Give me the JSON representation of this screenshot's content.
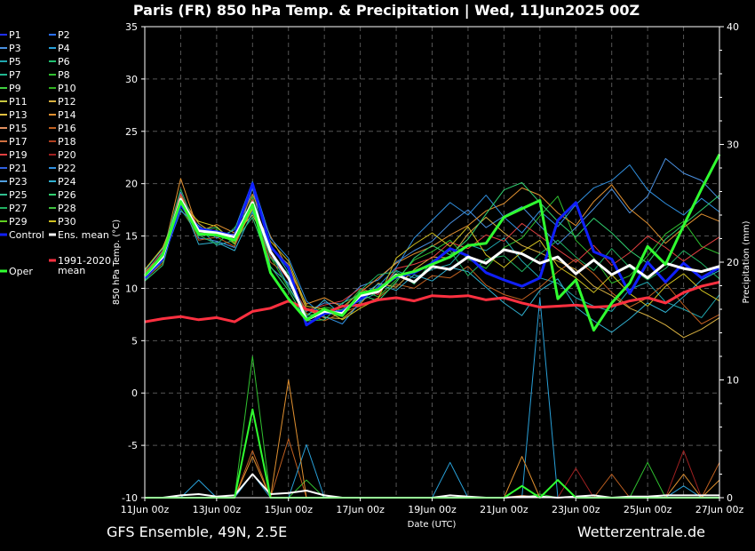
{
  "chart_data": {
    "type": "line",
    "title": "Paris  (FR)  850 hPa Temp. & Precipitation | Wed, 11Jun2025 00Z",
    "xlabel": "Date (UTC)",
    "ylabel_left": "850 hPa Temp. (°C)",
    "ylabel_right": "Precipitation (mm)",
    "ylim_left": [
      -10,
      35
    ],
    "ylim_right": [
      0,
      40
    ],
    "y_ticks_left": [
      "35",
      "30",
      "25",
      "20",
      "15",
      "10",
      "5",
      "0",
      "-5",
      "-10"
    ],
    "y_ticks_right": [
      "40",
      "30",
      "20",
      "10",
      "0"
    ],
    "x_ticks": [
      "11Jun 00z",
      "13Jun 00z",
      "15Jun 00z",
      "17Jun 00z",
      "19Jun 00z",
      "21Jun 00z",
      "23Jun 00z",
      "25Jun 00z",
      "27Jun 00z"
    ],
    "x_hours_range": [
      0,
      384
    ],
    "grid": true,
    "legend_position": "left",
    "source_left": "GFS Ensemble, 49N, 2.5E",
    "source_right": "Wetterzentrale.de",
    "legend": [
      {
        "label": "P1",
        "color": "#2030ff"
      },
      {
        "label": "P2",
        "color": "#2a70ff"
      },
      {
        "label": "P3",
        "color": "#4a90e0"
      },
      {
        "label": "P4",
        "color": "#28a0d8"
      },
      {
        "label": "P5",
        "color": "#20a8b0"
      },
      {
        "label": "P6",
        "color": "#20c070"
      },
      {
        "label": "P7",
        "color": "#20b890"
      },
      {
        "label": "P8",
        "color": "#30c030"
      },
      {
        "label": "P9",
        "color": "#40d040"
      },
      {
        "label": "P10",
        "color": "#30b020"
      },
      {
        "label": "P11",
        "color": "#c8c840"
      },
      {
        "label": "P12",
        "color": "#d8b040"
      },
      {
        "label": "P13",
        "color": "#e0c040"
      },
      {
        "label": "P14",
        "color": "#e09030"
      },
      {
        "label": "P15",
        "color": "#e09060"
      },
      {
        "label": "P16",
        "color": "#c06020"
      },
      {
        "label": "P17",
        "color": "#d07040"
      },
      {
        "label": "P18",
        "color": "#b04020"
      },
      {
        "label": "P19",
        "color": "#e04040"
      },
      {
        "label": "P20",
        "color": "#a02020"
      },
      {
        "label": "P21",
        "color": "#3060e0"
      },
      {
        "label": "P22",
        "color": "#3090e0"
      },
      {
        "label": "P23",
        "color": "#50a0e0"
      },
      {
        "label": "P24",
        "color": "#30b0d0"
      },
      {
        "label": "P25",
        "color": "#30c090"
      },
      {
        "label": "P26",
        "color": "#30d070"
      },
      {
        "label": "P27",
        "color": "#20b060"
      },
      {
        "label": "P28",
        "color": "#40c040"
      },
      {
        "label": "P29",
        "color": "#60d020"
      },
      {
        "label": "P30",
        "color": "#d0c020"
      },
      {
        "label": "Control",
        "color": "#1020ff"
      },
      {
        "label": "Ens. mean",
        "color": "#ffffff"
      },
      {
        "label": "1991-2020 mean",
        "color": "#ff3040"
      },
      {
        "label": "Oper",
        "color": "#30ff30"
      }
    ],
    "x_hours": [
      0,
      12,
      24,
      36,
      48,
      60,
      72,
      84,
      96,
      108,
      120,
      132,
      144,
      156,
      168,
      180,
      192,
      204,
      216,
      228,
      240,
      252,
      264,
      276,
      288,
      300,
      312,
      324,
      336,
      348,
      360,
      372,
      384
    ],
    "series": [
      {
        "name": "Ens. mean",
        "axis": "left",
        "values": [
          11.2,
          13.0,
          18.5,
          15.5,
          15.3,
          14.9,
          18.2,
          13.5,
          11.0,
          7.0,
          7.8,
          7.6,
          9.3,
          9.7,
          11.3,
          10.6,
          12.1,
          11.8,
          13.0,
          12.4,
          13.7,
          13.3,
          12.4,
          13.0,
          11.4,
          12.7,
          11.3,
          12.2,
          11.0,
          12.4,
          11.9,
          11.6,
          12.1
        ]
      },
      {
        "name": "Oper",
        "axis": "left",
        "values": [
          11.2,
          13.2,
          18.3,
          15.2,
          15.1,
          14.6,
          18.0,
          11.5,
          9.0,
          7.0,
          8.0,
          7.4,
          9.5,
          9.9,
          11.2,
          11.6,
          12.3,
          13.0,
          14.1,
          14.3,
          16.8,
          17.6,
          18.4,
          9.0,
          10.8,
          6.0,
          8.6,
          10.5,
          14.0,
          12.3,
          16.0,
          19.5,
          22.8
        ]
      },
      {
        "name": "Control",
        "axis": "left",
        "values": [
          11.0,
          12.8,
          18.0,
          15.7,
          15.4,
          15.0,
          20.0,
          14.0,
          12.0,
          6.5,
          7.6,
          7.8,
          9.0,
          10.0,
          11.1,
          11.5,
          12.4,
          13.8,
          13.1,
          11.5,
          10.8,
          10.2,
          11.0,
          16.5,
          18.2,
          13.5,
          12.8,
          9.5,
          12.5,
          10.6,
          12.4,
          11.0,
          12.0
        ]
      },
      {
        "name": "1991-2020 mean",
        "axis": "left",
        "values": [
          6.8,
          7.1,
          7.3,
          7.0,
          7.2,
          6.8,
          7.8,
          8.1,
          8.8,
          8.0,
          7.6,
          8.3,
          8.4,
          8.9,
          9.1,
          8.8,
          9.3,
          9.2,
          9.3,
          8.9,
          9.1,
          8.6,
          8.2,
          8.3,
          8.4,
          8.2,
          8.3,
          8.8,
          9.1,
          8.6,
          9.6,
          10.2,
          10.6
        ]
      },
      {
        "name": "P3",
        "axis": "left",
        "values": [
          11.5,
          13.5,
          19.2,
          14.8,
          14.5,
          13.9,
          19.6,
          12.0,
          10.5,
          7.8,
          8.6,
          8.5,
          10.2,
          10.8,
          12.5,
          13.6,
          14.5,
          16.2,
          17.5,
          15.8,
          16.9,
          17.8,
          16.0,
          14.2,
          15.8,
          17.6,
          19.5,
          17.2,
          18.8,
          22.4,
          21.0,
          20.3,
          18.5
        ]
      },
      {
        "name": "P5",
        "axis": "left",
        "values": [
          10.8,
          12.6,
          17.9,
          15.9,
          14.1,
          14.6,
          17.5,
          14.2,
          11.5,
          7.2,
          7.5,
          8.0,
          8.8,
          9.6,
          11.7,
          11.0,
          11.8,
          12.3,
          14.2,
          13.6,
          14.8,
          12.6,
          11.0,
          10.5,
          9.1,
          8.3,
          7.8,
          9.9,
          10.6,
          8.7,
          8.0,
          7.2,
          9.4
        ]
      },
      {
        "name": "P8",
        "axis": "left",
        "values": [
          11.0,
          13.4,
          17.6,
          15.0,
          15.6,
          14.2,
          18.8,
          13.0,
          10.0,
          7.5,
          8.2,
          7.9,
          9.9,
          9.2,
          10.8,
          12.7,
          13.5,
          14.6,
          12.8,
          11.9,
          13.9,
          14.8,
          16.9,
          18.8,
          14.6,
          12.9,
          10.5,
          11.2,
          13.1,
          15.2,
          16.4,
          14.0,
          13.3
        ]
      },
      {
        "name": "P12",
        "axis": "left",
        "values": [
          11.3,
          12.9,
          18.8,
          16.2,
          15.0,
          15.2,
          17.0,
          13.8,
          12.3,
          8.0,
          7.2,
          7.1,
          8.5,
          10.5,
          10.1,
          11.8,
          13.0,
          12.9,
          15.2,
          16.8,
          15.3,
          14.1,
          13.4,
          12.6,
          11.8,
          10.2,
          9.3,
          8.1,
          7.4,
          6.5,
          5.3,
          6.1,
          7.2
        ]
      },
      {
        "name": "P14",
        "axis": "left",
        "values": [
          11.6,
          13.1,
          20.5,
          15.4,
          16.1,
          15.3,
          19.0,
          15.0,
          11.8,
          8.5,
          9.1,
          8.2,
          9.6,
          11.0,
          12.4,
          13.3,
          14.0,
          15.1,
          16.0,
          17.4,
          18.1,
          19.6,
          18.9,
          17.2,
          16.0,
          18.3,
          19.9,
          17.6,
          16.2,
          14.3,
          15.8,
          17.1,
          16.4
        ]
      },
      {
        "name": "P16",
        "axis": "left",
        "values": [
          10.9,
          12.4,
          18.1,
          14.6,
          14.9,
          14.0,
          17.8,
          12.5,
          11.2,
          7.6,
          6.9,
          7.7,
          8.3,
          9.1,
          10.4,
          10.0,
          11.2,
          11.0,
          12.1,
          10.3,
          9.4,
          8.9,
          10.1,
          11.6,
          12.8,
          11.4,
          9.6,
          8.2,
          9.1,
          10.5,
          8.4,
          6.6,
          7.5
        ]
      },
      {
        "name": "P19",
        "axis": "left",
        "values": [
          11.4,
          13.6,
          19.0,
          15.8,
          15.5,
          14.8,
          18.5,
          13.1,
          10.8,
          7.9,
          8.4,
          8.8,
          10.0,
          9.4,
          11.9,
          12.3,
          12.9,
          14.4,
          13.8,
          15.1,
          14.5,
          16.2,
          15.0,
          13.7,
          12.5,
          14.1,
          12.2,
          13.4,
          15.0,
          13.9,
          12.6,
          13.8,
          14.9
        ]
      },
      {
        "name": "P22",
        "axis": "left",
        "values": [
          11.1,
          12.7,
          17.4,
          16.0,
          14.8,
          15.6,
          20.2,
          14.8,
          12.9,
          8.8,
          7.3,
          6.6,
          8.7,
          10.2,
          12.0,
          14.8,
          16.5,
          18.2,
          17.0,
          18.9,
          16.8,
          15.3,
          17.4,
          15.9,
          18.0,
          19.6,
          20.3,
          21.8,
          19.4,
          18.1,
          17.0,
          18.6,
          17.3
        ]
      },
      {
        "name": "P24",
        "axis": "left",
        "values": [
          11.7,
          13.8,
          18.6,
          14.2,
          14.4,
          13.6,
          17.3,
          13.4,
          10.2,
          7.3,
          8.9,
          7.4,
          9.2,
          10.4,
          9.8,
          11.3,
          10.7,
          12.0,
          11.6,
          10.1,
          8.6,
          7.4,
          9.8,
          10.9,
          8.2,
          6.9,
          5.8,
          7.1,
          8.6,
          7.7,
          9.2,
          10.8,
          11.7
        ]
      },
      {
        "name": "P26",
        "axis": "left",
        "values": [
          10.7,
          12.2,
          18.2,
          15.6,
          15.8,
          14.5,
          16.8,
          12.1,
          9.8,
          6.9,
          7.0,
          8.6,
          9.4,
          8.8,
          10.6,
          12.9,
          14.1,
          13.2,
          14.7,
          17.1,
          19.4,
          20.1,
          18.2,
          16.4,
          14.9,
          16.7,
          15.3,
          13.6,
          12.4,
          14.7,
          16.1,
          17.5,
          18.9
        ]
      },
      {
        "name": "P27",
        "axis": "left",
        "values": [
          11.2,
          13.3,
          19.5,
          15.1,
          14.2,
          15.8,
          18.1,
          12.9,
          11.4,
          7.4,
          7.7,
          7.3,
          9.8,
          11.3,
          11.6,
          10.4,
          12.6,
          13.6,
          11.2,
          12.8,
          13.1,
          11.6,
          13.3,
          14.6,
          13.0,
          11.7,
          13.8,
          12.0,
          10.8,
          11.9,
          13.6,
          12.4,
          10.9
        ]
      },
      {
        "name": "P30",
        "axis": "left",
        "values": [
          11.8,
          13.9,
          18.0,
          16.4,
          15.9,
          14.3,
          17.6,
          14.5,
          12.6,
          8.3,
          8.0,
          7.0,
          8.1,
          9.0,
          12.9,
          14.2,
          15.3,
          14.0,
          15.9,
          13.2,
          12.0,
          13.5,
          14.6,
          12.1,
          11.0,
          9.6,
          11.3,
          9.5,
          8.3,
          10.2,
          11.4,
          9.8,
          8.8
        ]
      },
      {
        "name": "Precip mean",
        "axis": "right",
        "values": [
          0,
          0,
          0.2,
          0.3,
          0.1,
          0.2,
          2.0,
          0.3,
          0.4,
          0.6,
          0.2,
          0,
          0,
          0,
          0,
          0,
          0,
          0.2,
          0.1,
          0,
          0,
          0.1,
          0.1,
          0,
          0.1,
          0.2,
          0,
          0.1,
          0.1,
          0.2,
          0.2,
          0.2,
          0.2
        ]
      },
      {
        "name": "Precip oper",
        "axis": "right",
        "values": [
          0,
          0,
          0,
          0,
          0,
          0,
          7.5,
          0,
          0,
          0,
          0,
          0,
          0,
          0,
          0,
          0,
          0,
          0,
          0,
          0,
          0,
          1.0,
          0,
          1.5,
          0,
          0,
          0,
          0,
          0,
          0,
          0,
          0,
          0
        ]
      },
      {
        "name": "Precip P8",
        "axis": "right",
        "values": [
          0,
          0,
          0,
          0,
          0,
          0,
          12.0,
          0,
          0,
          1.5,
          0,
          0,
          0,
          0,
          0,
          0,
          0,
          0,
          0,
          0,
          0,
          0,
          0.3,
          0,
          0,
          0,
          0,
          0,
          3.0,
          0,
          0,
          0,
          0
        ]
      },
      {
        "name": "Precip P16",
        "axis": "right",
        "values": [
          0,
          0,
          0,
          0,
          0,
          0,
          4.0,
          0,
          5.0,
          0,
          0,
          0,
          0,
          0,
          0,
          0,
          0,
          0,
          0,
          0,
          0,
          0.2,
          0,
          0,
          0,
          0,
          2.0,
          0,
          0,
          0,
          0,
          0,
          3.0
        ]
      },
      {
        "name": "Precip P4",
        "axis": "right",
        "values": [
          0,
          0,
          0,
          1.5,
          0,
          0,
          2.0,
          0,
          0,
          4.5,
          0,
          0,
          0,
          0,
          0,
          0,
          0,
          3.0,
          0,
          0,
          0,
          0,
          17.0,
          0,
          0,
          0,
          0,
          0,
          0,
          0,
          1.0,
          0,
          0
        ]
      },
      {
        "name": "Precip P20",
        "axis": "right",
        "values": [
          0,
          0,
          0,
          0,
          0,
          0,
          0,
          0,
          0,
          0,
          0,
          0,
          0,
          0,
          0,
          0,
          0,
          0,
          0,
          0,
          0,
          0,
          0,
          0,
          2.5,
          0,
          0,
          0,
          0,
          0,
          4.0,
          0,
          0
        ]
      },
      {
        "name": "Precip P14",
        "axis": "right",
        "values": [
          0,
          0,
          0,
          0,
          0,
          0,
          3.5,
          0,
          10.0,
          0,
          0,
          0,
          0,
          0,
          0,
          0,
          0,
          0,
          0,
          0,
          0,
          3.5,
          0,
          0,
          0,
          0,
          0,
          0,
          0,
          0,
          2.0,
          0,
          1.5
        ]
      }
    ]
  }
}
